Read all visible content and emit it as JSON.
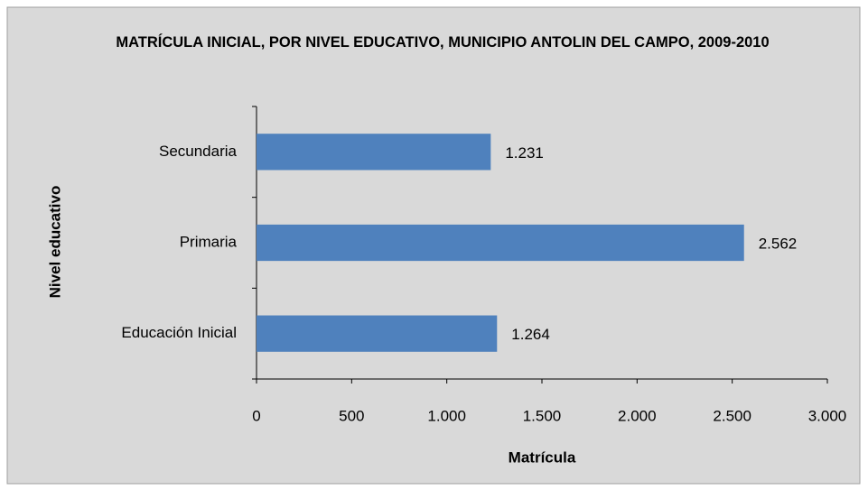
{
  "chart_data": {
    "type": "hbar",
    "title": "MATRÍCULA INICIAL, POR NIVEL EDUCATIVO, MUNICIPIO ANTOLIN DEL CAMPO, 2009-2010",
    "categories": [
      "Secundaria",
      "Primaria",
      "Educación Inicial"
    ],
    "values": [
      1231,
      2562,
      1264
    ],
    "value_labels": [
      "1.231",
      "2.562",
      "1.264"
    ],
    "color": "#4f81bd",
    "x_label": "Matrícula",
    "y_label": "Nivel educativo",
    "xlim": [
      0,
      3000
    ],
    "xticks": [
      0,
      500,
      {
        "value": 1000,
        "label": "1.000"
      },
      {
        "value": 1500,
        "label": "1.500"
      },
      {
        "value": 2000,
        "label": "2.000"
      },
      {
        "value": 2500,
        "label": "2.500"
      },
      {
        "value": 3000,
        "label": "3.000"
      }
    ],
    "grid": false
  }
}
